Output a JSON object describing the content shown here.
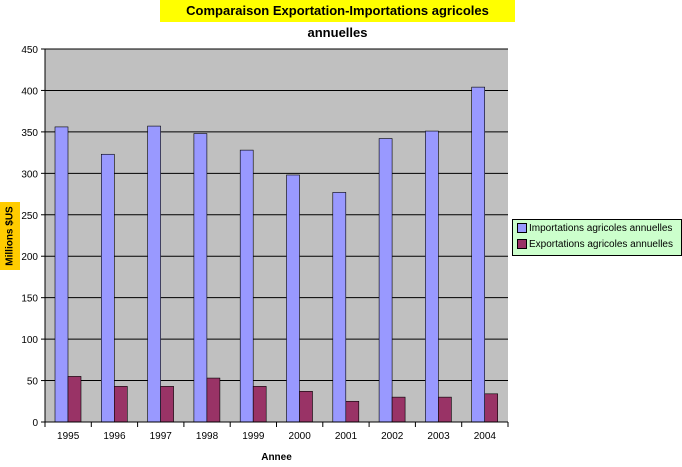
{
  "chart_data": {
    "type": "bar",
    "title": "Comparaison Exportation-Importations agricoles annuelles",
    "xlabel": "Annee",
    "ylabel": "Millions $US",
    "ylim": [
      0,
      450
    ],
    "yticks": [
      "0",
      "50",
      "100",
      "150",
      "200",
      "250",
      "300",
      "350",
      "400",
      "450"
    ],
    "categories": [
      "1995",
      "1996",
      "1997",
      "1998",
      "1999",
      "2000",
      "2001",
      "2002",
      "2003",
      "2004"
    ],
    "series": [
      {
        "name": "Importations agricoles annuelles",
        "color": "#9999ff",
        "values": [
          356,
          323,
          357,
          348,
          328,
          298,
          277,
          342,
          351,
          404
        ]
      },
      {
        "name": "Exportations agricoles annuelles",
        "color": "#993366",
        "values": [
          55,
          43,
          43,
          53,
          43,
          37,
          25,
          30,
          30,
          34
        ]
      }
    ],
    "grid": true,
    "legend": "right"
  }
}
